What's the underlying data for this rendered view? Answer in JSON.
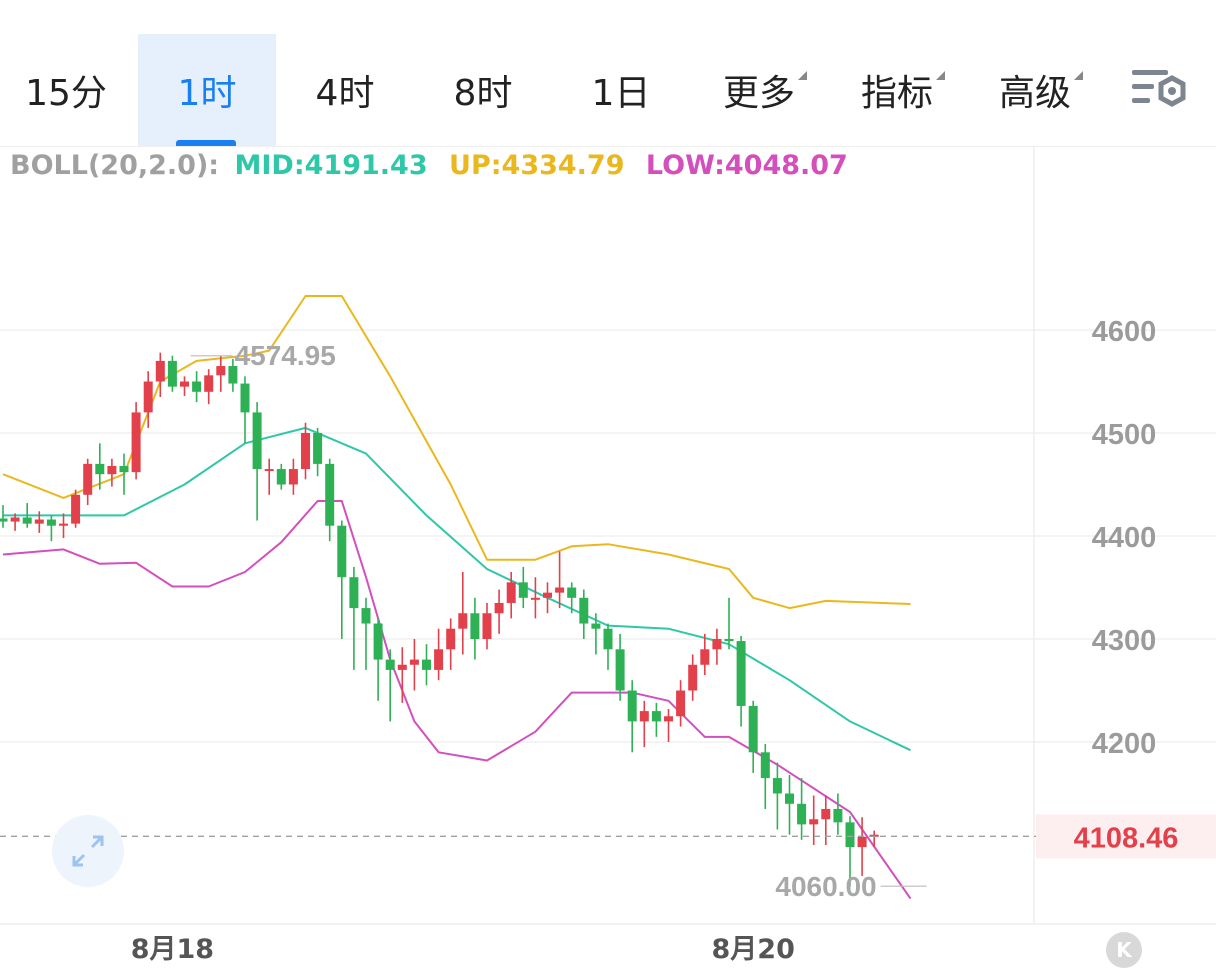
{
  "tabs": [
    {
      "label": "15分",
      "active": false,
      "dropdown": false
    },
    {
      "label": "1时",
      "active": true,
      "dropdown": false
    },
    {
      "label": "4时",
      "active": false,
      "dropdown": false
    },
    {
      "label": "8时",
      "active": false,
      "dropdown": false
    },
    {
      "label": "1日",
      "active": false,
      "dropdown": false
    },
    {
      "label": "更多",
      "active": false,
      "dropdown": true
    },
    {
      "label": "指标",
      "active": false,
      "dropdown": true
    },
    {
      "label": "高级",
      "active": false,
      "dropdown": true
    }
  ],
  "indicator": {
    "name": "BOLL(20,2.0):",
    "mid": "MID:4191.43",
    "up": "UP:4334.79",
    "low": "LOW:4048.07"
  },
  "colors": {
    "up_candle": "#e2404a",
    "down_candle": "#2eb155",
    "mid": "#2ec7a8",
    "upper": "#eab81e",
    "lower": "#d34fbd",
    "accent": "#1a7ff0",
    "price_tag": "#e2404a"
  },
  "icons": {
    "settings": "chart-settings-icon",
    "expand": "expand-icon",
    "k": "k-line-icon"
  },
  "k_button": "K",
  "chart_data": {
    "type": "candlestick",
    "ylim": [
      4020,
      4660
    ],
    "y_ticks": [
      4200,
      4300,
      4400,
      4500,
      4600
    ],
    "x_labels": [
      {
        "label": "8月18",
        "index": 14
      },
      {
        "label": "8月20",
        "index": 62
      }
    ],
    "current_price": "4108.46",
    "current_price_value": 4108.46,
    "high_marker": {
      "label": "4574.95",
      "index": 16,
      "value": 4574.95
    },
    "low_marker": {
      "label": "4060.00",
      "index": 76,
      "value": 4060.0
    },
    "grid": true,
    "ohlc": [
      [
        4417,
        4430,
        4408,
        4414
      ],
      [
        4414,
        4422,
        4405,
        4418
      ],
      [
        4418,
        4432,
        4408,
        4412
      ],
      [
        4412,
        4424,
        4403,
        4416
      ],
      [
        4416,
        4420,
        4395,
        4410
      ],
      [
        4410,
        4422,
        4398,
        4412
      ],
      [
        4412,
        4445,
        4408,
        4440
      ],
      [
        4440,
        4475,
        4430,
        4470
      ],
      [
        4470,
        4490,
        4445,
        4460
      ],
      [
        4460,
        4475,
        4448,
        4468
      ],
      [
        4468,
        4480,
        4440,
        4462
      ],
      [
        4462,
        4530,
        4455,
        4520
      ],
      [
        4520,
        4560,
        4505,
        4550
      ],
      [
        4550,
        4578,
        4535,
        4570
      ],
      [
        4570,
        4575,
        4540,
        4545
      ],
      [
        4545,
        4555,
        4536,
        4550
      ],
      [
        4550,
        4560,
        4530,
        4540
      ],
      [
        4540,
        4562,
        4528,
        4556
      ],
      [
        4556,
        4575,
        4540,
        4565
      ],
      [
        4565,
        4572,
        4540,
        4548
      ],
      [
        4548,
        4555,
        4490,
        4520
      ],
      [
        4520,
        4530,
        4415,
        4465
      ],
      [
        4465,
        4475,
        4440,
        4465
      ],
      [
        4465,
        4470,
        4445,
        4450
      ],
      [
        4450,
        4475,
        4440,
        4465
      ],
      [
        4465,
        4510,
        4455,
        4500
      ],
      [
        4500,
        4505,
        4458,
        4470
      ],
      [
        4470,
        4475,
        4395,
        4410
      ],
      [
        4410,
        4415,
        4300,
        4360
      ],
      [
        4360,
        4370,
        4270,
        4330
      ],
      [
        4330,
        4340,
        4270,
        4315
      ],
      [
        4315,
        4320,
        4240,
        4280
      ],
      [
        4280,
        4290,
        4220,
        4270
      ],
      [
        4270,
        4292,
        4238,
        4275
      ],
      [
        4275,
        4300,
        4250,
        4280
      ],
      [
        4280,
        4295,
        4255,
        4270
      ],
      [
        4270,
        4310,
        4260,
        4290
      ],
      [
        4290,
        4320,
        4270,
        4310
      ],
      [
        4310,
        4365,
        4285,
        4325
      ],
      [
        4325,
        4340,
        4280,
        4300
      ],
      [
        4300,
        4335,
        4290,
        4325
      ],
      [
        4325,
        4348,
        4305,
        4335
      ],
      [
        4335,
        4365,
        4320,
        4355
      ],
      [
        4355,
        4370,
        4330,
        4340
      ],
      [
        4340,
        4360,
        4320,
        4340
      ],
      [
        4340,
        4355,
        4325,
        4345
      ],
      [
        4345,
        4385,
        4330,
        4350
      ],
      [
        4350,
        4355,
        4325,
        4340
      ],
      [
        4340,
        4348,
        4300,
        4315
      ],
      [
        4315,
        4325,
        4285,
        4310
      ],
      [
        4310,
        4315,
        4270,
        4290
      ],
      [
        4290,
        4305,
        4240,
        4250
      ],
      [
        4250,
        4260,
        4190,
        4220
      ],
      [
        4220,
        4240,
        4195,
        4230
      ],
      [
        4230,
        4238,
        4205,
        4220
      ],
      [
        4220,
        4232,
        4200,
        4225
      ],
      [
        4225,
        4260,
        4215,
        4250
      ],
      [
        4250,
        4285,
        4240,
        4275
      ],
      [
        4275,
        4305,
        4265,
        4290
      ],
      [
        4290,
        4310,
        4275,
        4300
      ],
      [
        4300,
        4340,
        4290,
        4298
      ],
      [
        4298,
        4303,
        4215,
        4235
      ],
      [
        4235,
        4240,
        4170,
        4190
      ],
      [
        4190,
        4198,
        4135,
        4165
      ],
      [
        4165,
        4180,
        4115,
        4150
      ],
      [
        4150,
        4168,
        4110,
        4140
      ],
      [
        4140,
        4165,
        4105,
        4120
      ],
      [
        4120,
        4148,
        4100,
        4125
      ],
      [
        4125,
        4148,
        4100,
        4135
      ],
      [
        4135,
        4150,
        4110,
        4122
      ],
      [
        4122,
        4128,
        4060,
        4098
      ],
      [
        4098,
        4127,
        4070,
        4108
      ],
      [
        4108,
        4114,
        4098,
        4110
      ]
    ],
    "mid_series": [
      [
        0,
        4420
      ],
      [
        10,
        4420
      ],
      [
        15,
        4450
      ],
      [
        20,
        4490
      ],
      [
        25,
        4505
      ],
      [
        30,
        4480
      ],
      [
        35,
        4420
      ],
      [
        40,
        4368
      ],
      [
        45,
        4340
      ],
      [
        50,
        4313
      ],
      [
        55,
        4310
      ],
      [
        60,
        4295
      ],
      [
        65,
        4260
      ],
      [
        70,
        4220
      ],
      [
        75,
        4192
      ]
    ],
    "upper_series": [
      [
        0,
        4460
      ],
      [
        5,
        4437
      ],
      [
        10,
        4460
      ],
      [
        13,
        4550
      ],
      [
        16,
        4570
      ],
      [
        20,
        4575
      ],
      [
        22,
        4580
      ],
      [
        25,
        4633
      ],
      [
        28,
        4633
      ],
      [
        32,
        4555
      ],
      [
        37,
        4450
      ],
      [
        40,
        4377
      ],
      [
        44,
        4377
      ],
      [
        47,
        4390
      ],
      [
        50,
        4392
      ],
      [
        55,
        4382
      ],
      [
        60,
        4368
      ],
      [
        62,
        4340
      ],
      [
        65,
        4330
      ],
      [
        68,
        4337
      ],
      [
        75,
        4334
      ]
    ],
    "lower_series": [
      [
        0,
        4382
      ],
      [
        5,
        4387
      ],
      [
        8,
        4373
      ],
      [
        11,
        4374
      ],
      [
        14,
        4351
      ],
      [
        17,
        4351
      ],
      [
        20,
        4365
      ],
      [
        23,
        4394
      ],
      [
        26,
        4434
      ],
      [
        28,
        4434
      ],
      [
        30,
        4360
      ],
      [
        32,
        4280
      ],
      [
        34,
        4220
      ],
      [
        36,
        4190
      ],
      [
        40,
        4182
      ],
      [
        44,
        4210
      ],
      [
        47,
        4248
      ],
      [
        52,
        4248
      ],
      [
        55,
        4240
      ],
      [
        58,
        4205
      ],
      [
        60,
        4205
      ],
      [
        64,
        4178
      ],
      [
        70,
        4132
      ],
      [
        75,
        4048
      ]
    ]
  }
}
